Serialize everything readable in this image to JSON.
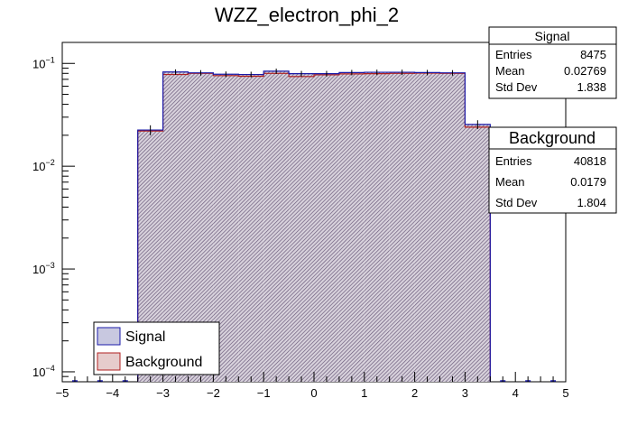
{
  "chart_data": {
    "type": "bar",
    "title": "WZZ_electron_phi_2",
    "xlabel": "",
    "ylabel": "",
    "xlim": [
      -5,
      5
    ],
    "ylim": [
      8e-05,
      0.16
    ],
    "yscale": "log",
    "grid": false,
    "legend_position": "bottom-left",
    "x_ticks": [
      "−5",
      "−4",
      "−3",
      "−2",
      "−1",
      "0",
      "1",
      "2",
      "3",
      "4",
      "5"
    ],
    "y_ticks": [
      {
        "value": 0.1,
        "base": "10",
        "exp": "−1"
      },
      {
        "value": 0.01,
        "base": "10",
        "exp": "−2"
      },
      {
        "value": 0.001,
        "base": "10",
        "exp": "−3"
      },
      {
        "value": 0.0001,
        "base": "10",
        "exp": "−4"
      }
    ],
    "bin_edges": [
      -3.5,
      -3.0,
      -2.5,
      -2.0,
      -1.5,
      -1.0,
      -0.5,
      0.0,
      0.5,
      1.0,
      1.5,
      2.0,
      2.5,
      3.0,
      3.5
    ],
    "series": [
      {
        "name": "Signal",
        "color": "#1a1aa8",
        "fill": "#8f8fc8",
        "values": [
          0.0225,
          0.0825,
          0.081,
          0.0785,
          0.078,
          0.084,
          0.0795,
          0.0795,
          0.0815,
          0.082,
          0.082,
          0.0815,
          0.081,
          0.0255
        ],
        "errors": [
          0.0025,
          0.005,
          0.005,
          0.005,
          0.005,
          0.005,
          0.005,
          0.005,
          0.005,
          0.005,
          0.005,
          0.005,
          0.005,
          0.0025
        ]
      },
      {
        "name": "Background",
        "color": "#b02020",
        "fill": "#c89090",
        "values": [
          0.022,
          0.078,
          0.08,
          0.076,
          0.075,
          0.08,
          0.0745,
          0.0775,
          0.079,
          0.0795,
          0.08,
          0.0805,
          0.08,
          0.024
        ]
      }
    ],
    "stats": [
      {
        "title": "Signal",
        "rows": [
          [
            "Entries",
            "8475"
          ],
          [
            "Mean",
            "0.02769"
          ],
          [
            "Std Dev",
            "1.838"
          ]
        ]
      },
      {
        "title": "Background",
        "rows": [
          [
            "Entries",
            "40818"
          ],
          [
            "Mean",
            "0.0179"
          ],
          [
            "Std Dev",
            "1.804"
          ]
        ]
      }
    ]
  }
}
